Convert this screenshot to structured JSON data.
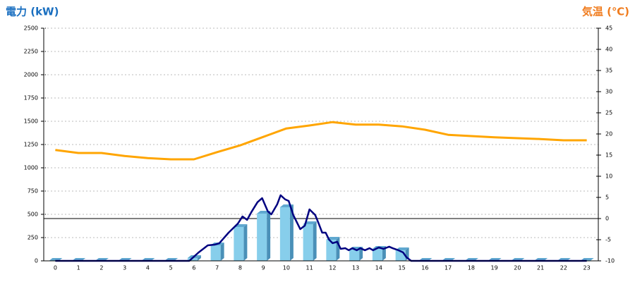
{
  "chart_data": {
    "type": "bar",
    "y_label": "電力 (kW)",
    "y2_label": "気温 (℃)",
    "categories": [
      "0",
      "1",
      "2",
      "3",
      "4",
      "5",
      "6",
      "7",
      "8",
      "9",
      "10",
      "11",
      "12",
      "13",
      "14",
      "15",
      "16",
      "17",
      "18",
      "19",
      "20",
      "21",
      "22",
      "23"
    ],
    "ylim": [
      0,
      2500
    ],
    "yticks": [
      0,
      250,
      500,
      750,
      1000,
      1250,
      1500,
      1750,
      2000,
      2250,
      2500
    ],
    "y2lim": [
      -10,
      45
    ],
    "y2ticks": [
      -10,
      -5,
      0,
      5,
      10,
      15,
      20,
      25,
      30,
      35,
      40,
      45
    ],
    "grid": true,
    "series": [
      {
        "type": "bar",
        "color": "#87ceeb",
        "values": [
          0,
          0,
          0,
          0,
          0,
          0,
          30,
          167,
          364,
          508,
          576,
          394,
          227,
          121,
          129,
          114,
          0,
          0,
          0,
          0,
          0,
          0,
          0,
          0
        ]
      },
      {
        "type": "line",
        "color": "#000080",
        "x": [
          0,
          5.8,
          6.0,
          6.2,
          6.6,
          6.9,
          7.1,
          7.5,
          7.9,
          8.1,
          8.3,
          8.5,
          8.75,
          8.95,
          9.2,
          9.35,
          9.6,
          9.75,
          9.95,
          10.1,
          10.3,
          10.6,
          10.8,
          11.0,
          11.25,
          11.4,
          11.55,
          11.7,
          11.85,
          12.0,
          12.2,
          12.35,
          12.55,
          12.7,
          12.85,
          13.05,
          13.2,
          13.4,
          13.6,
          13.75,
          14.0,
          14.2,
          14.45,
          14.6,
          14.85,
          15.05,
          15.2,
          15.4,
          23
        ],
        "values": [
          0,
          0,
          45,
          90,
          167,
          174,
          190,
          303,
          400,
          477,
          440,
          530,
          630,
          674,
          530,
          500,
          606,
          705,
          660,
          644,
          492,
          341,
          379,
          553,
          492,
          400,
          303,
          303,
          227,
          190,
          205,
          129,
          136,
          114,
          136,
          114,
          136,
          114,
          136,
          114,
          144,
          129,
          152,
          136,
          114,
          91,
          38,
          0,
          0
        ]
      },
      {
        "type": "line",
        "axis": "y2",
        "color": "#ffa500",
        "values": [
          16.2,
          15.5,
          15.5,
          14.8,
          14.3,
          14,
          14,
          15.7,
          17.3,
          19.3,
          21.3,
          22,
          22.8,
          22.2,
          22.2,
          21.8,
          21,
          19.8,
          19.5,
          19.2,
          19,
          18.8,
          18.5,
          18.5
        ]
      }
    ]
  }
}
